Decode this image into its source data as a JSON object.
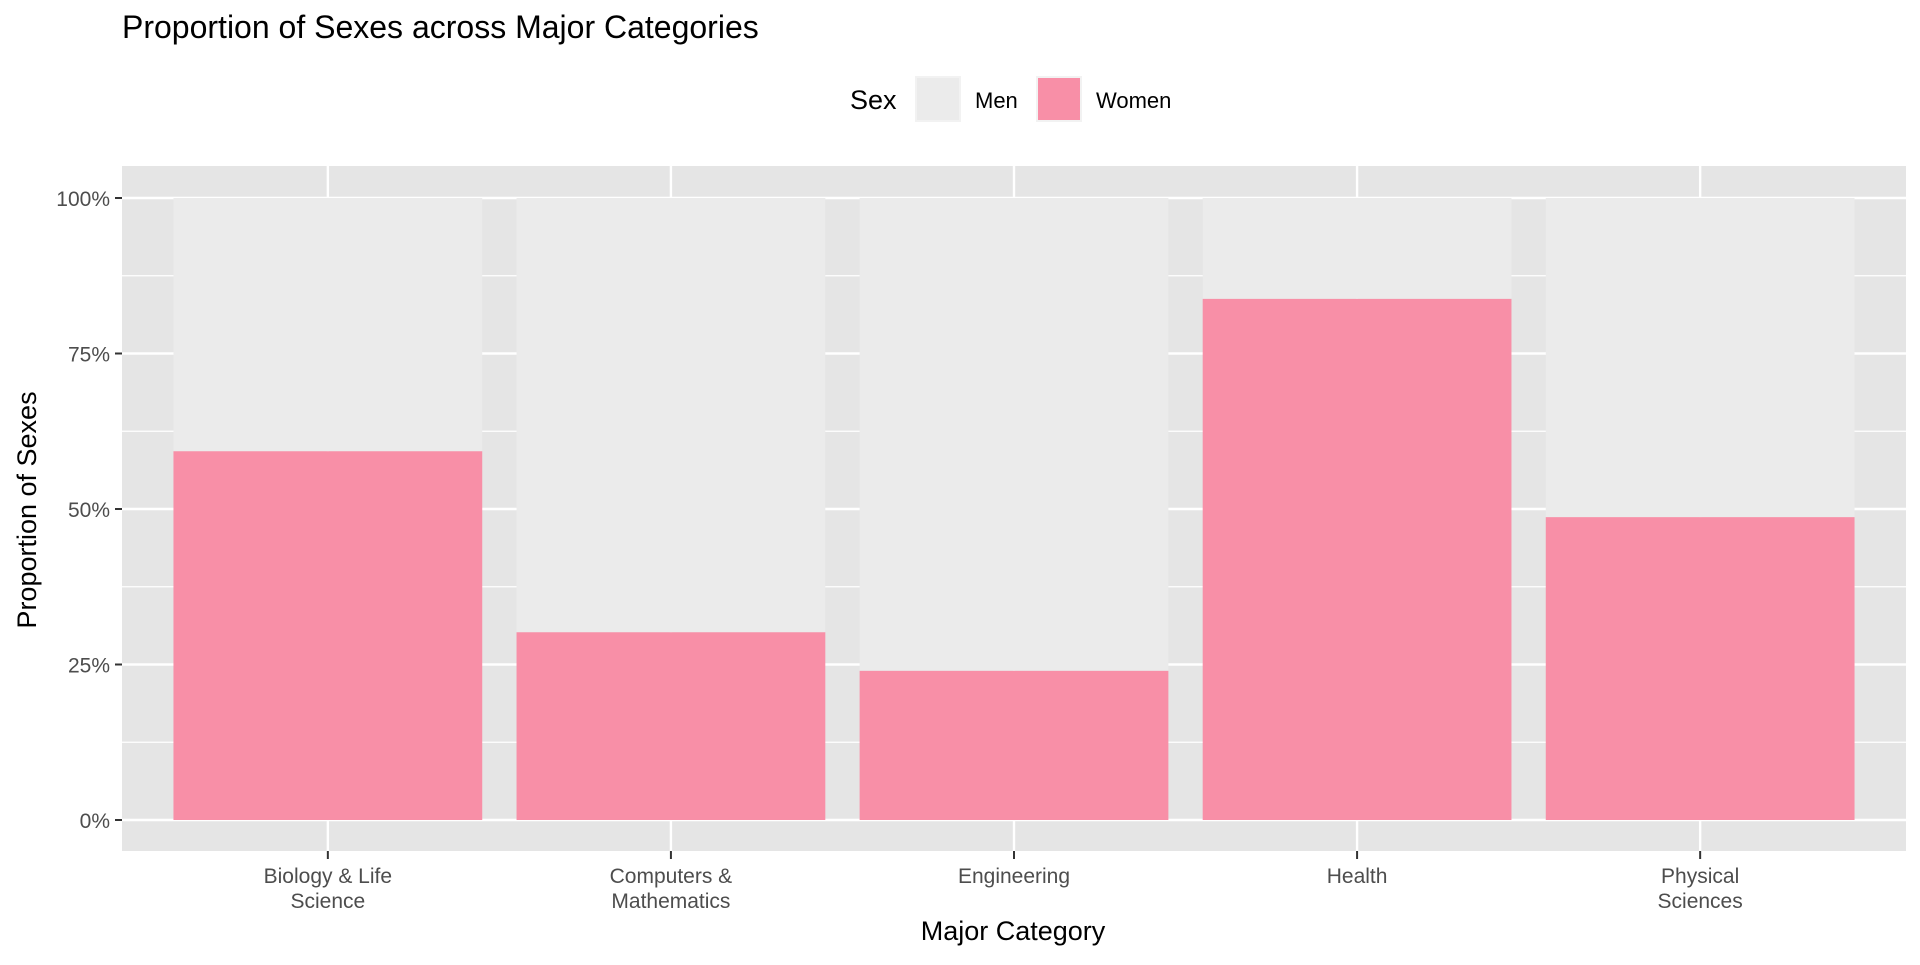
{
  "chart_data": {
    "type": "bar",
    "stacked": true,
    "title": "Proportion of Sexes across Major Categories",
    "xlabel": "Major Category",
    "ylabel": "Proportion of Sexes",
    "categories": [
      [
        "Biology & Life",
        "Science"
      ],
      [
        "Computers &",
        "Mathematics"
      ],
      [
        "Engineering"
      ],
      [
        "Health"
      ],
      [
        "Physical",
        "Sciences"
      ]
    ],
    "series": [
      {
        "name": "Women",
        "values": [
          0.593,
          0.302,
          0.24,
          0.838,
          0.487
        ]
      },
      {
        "name": "Men",
        "values": [
          0.407,
          0.698,
          0.76,
          0.162,
          0.513
        ]
      }
    ],
    "ylim": [
      0,
      1
    ],
    "yticks": [
      0,
      0.25,
      0.5,
      0.75,
      1
    ],
    "ytick_labels": [
      "0%",
      "25%",
      "50%",
      "75%",
      "100%"
    ],
    "grid": true,
    "legend": {
      "title": "Sex",
      "position": "top",
      "entries": [
        "Men",
        "Women"
      ]
    }
  },
  "colors": {
    "Men": "#ebebeb",
    "Women": "#f88fa7",
    "panel_background": "#e5e5e5",
    "grid": "#ffffff",
    "text": "#000000",
    "tick_text": "#4d4d4d",
    "tick_mark": "#333333"
  }
}
